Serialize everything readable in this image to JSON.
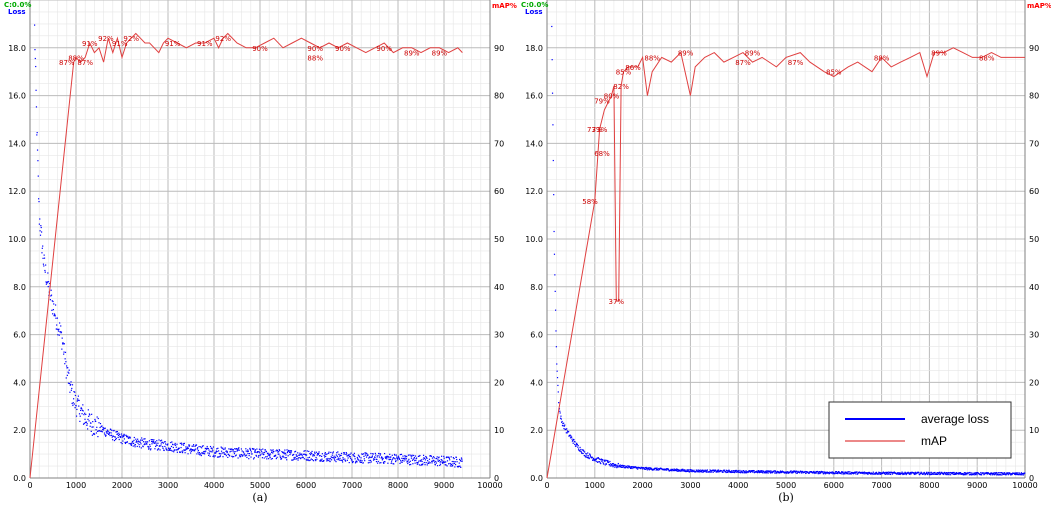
{
  "chart_data": [
    {
      "type": "line",
      "caption": "(a)",
      "left_axis_title": "Loss",
      "corner_label": "C:0.0%",
      "right_axis_title": "mAP%",
      "xlim": [
        0,
        10000
      ],
      "ylim_loss": [
        0,
        20
      ],
      "ylim_map": [
        0,
        100
      ],
      "x_ticks": [
        "0",
        "1000",
        "2000",
        "3000",
        "4000",
        "5000",
        "6000",
        "7000",
        "8000",
        "9000",
        "10000"
      ],
      "y_ticks_loss": [
        "0.0",
        "2.0",
        "4.0",
        "6.0",
        "8.0",
        "10.0",
        "12.0",
        "14.0",
        "16.0",
        "18.0"
      ],
      "y_ticks_map": [
        "0",
        "10",
        "20",
        "30",
        "40",
        "50",
        "60",
        "70",
        "80",
        "90"
      ],
      "loss_max_iter": 9400,
      "loss_curve": [
        [
          100,
          18.8
        ],
        [
          150,
          14.5
        ],
        [
          200,
          11.0
        ],
        [
          250,
          10.0
        ],
        [
          300,
          9.0
        ],
        [
          400,
          8.0
        ],
        [
          500,
          7.2
        ],
        [
          600,
          6.5
        ],
        [
          700,
          5.8
        ],
        [
          800,
          4.5
        ],
        [
          900,
          3.6
        ],
        [
          1000,
          3.1
        ],
        [
          1100,
          2.8
        ],
        [
          1200,
          2.5
        ],
        [
          1400,
          2.2
        ],
        [
          1600,
          2.0
        ],
        [
          1800,
          1.8
        ],
        [
          2000,
          1.65
        ],
        [
          2300,
          1.5
        ],
        [
          2600,
          1.4
        ],
        [
          3000,
          1.35
        ],
        [
          3500,
          1.2
        ],
        [
          4000,
          1.1
        ],
        [
          5000,
          1.0
        ],
        [
          6000,
          0.95
        ],
        [
          7000,
          0.85
        ],
        [
          8000,
          0.8
        ],
        [
          9000,
          0.7
        ],
        [
          9400,
          0.65
        ]
      ],
      "loss_noise": 0.22,
      "map_series": [
        [
          0,
          0
        ],
        [
          950,
          87
        ],
        [
          1000,
          88
        ],
        [
          1100,
          87
        ],
        [
          1200,
          88
        ],
        [
          1300,
          91
        ],
        [
          1400,
          89
        ],
        [
          1500,
          90
        ],
        [
          1600,
          87
        ],
        [
          1700,
          92
        ],
        [
          1800,
          89
        ],
        [
          1900,
          92
        ],
        [
          2000,
          88
        ],
        [
          2100,
          91
        ],
        [
          2200,
          92
        ],
        [
          2300,
          93
        ],
        [
          2400,
          92
        ],
        [
          2500,
          91
        ],
        [
          2600,
          91
        ],
        [
          2700,
          90
        ],
        [
          2800,
          89
        ],
        [
          2900,
          91
        ],
        [
          3000,
          92
        ],
        [
          3200,
          91
        ],
        [
          3400,
          90
        ],
        [
          3600,
          91
        ],
        [
          3800,
          91
        ],
        [
          4000,
          92
        ],
        [
          4100,
          90
        ],
        [
          4200,
          92
        ],
        [
          4300,
          93
        ],
        [
          4500,
          91
        ],
        [
          4700,
          90
        ],
        [
          4900,
          90
        ],
        [
          5100,
          91
        ],
        [
          5300,
          92
        ],
        [
          5500,
          90
        ],
        [
          5700,
          91
        ],
        [
          5900,
          92
        ],
        [
          6100,
          91
        ],
        [
          6300,
          90
        ],
        [
          6500,
          91
        ],
        [
          6700,
          90
        ],
        [
          6900,
          91
        ],
        [
          7100,
          90
        ],
        [
          7300,
          89
        ],
        [
          7500,
          90
        ],
        [
          7700,
          91
        ],
        [
          7900,
          89
        ],
        [
          8100,
          90
        ],
        [
          8300,
          90
        ],
        [
          8500,
          89
        ],
        [
          8700,
          90
        ],
        [
          8900,
          90
        ],
        [
          9100,
          89
        ],
        [
          9300,
          90
        ],
        [
          9400,
          89
        ]
      ],
      "map_labels": [
        {
          "x": 800,
          "y": 87,
          "text": "87%"
        },
        {
          "x": 1000,
          "y": 88,
          "text": "88%"
        },
        {
          "x": 1200,
          "y": 87,
          "text": "87%"
        },
        {
          "x": 1300,
          "y": 91,
          "text": "91%"
        },
        {
          "x": 1650,
          "y": 92,
          "text": "92%"
        },
        {
          "x": 1950,
          "y": 91,
          "text": "91%"
        },
        {
          "x": 2200,
          "y": 92,
          "text": "92%"
        },
        {
          "x": 3100,
          "y": 91,
          "text": "91%"
        },
        {
          "x": 3800,
          "y": 91,
          "text": "91%"
        },
        {
          "x": 4200,
          "y": 92,
          "text": "92%"
        },
        {
          "x": 5000,
          "y": 90,
          "text": "90%"
        },
        {
          "x": 6200,
          "y": 90,
          "text": "90%"
        },
        {
          "x": 6200,
          "y": 88,
          "text": "88%"
        },
        {
          "x": 6800,
          "y": 90,
          "text": "90%"
        },
        {
          "x": 7700,
          "y": 90,
          "text": "90%"
        },
        {
          "x": 8300,
          "y": 89,
          "text": "89%"
        },
        {
          "x": 8900,
          "y": 89,
          "text": "89%"
        }
      ]
    },
    {
      "type": "line",
      "caption": "(b)",
      "left_axis_title": "Loss",
      "corner_label": "C:0.0%",
      "right_axis_title": "mAP%",
      "xlim": [
        0,
        10000
      ],
      "ylim_loss": [
        0,
        20
      ],
      "ylim_map": [
        0,
        100
      ],
      "x_ticks": [
        "0",
        "1000",
        "2000",
        "3000",
        "4000",
        "5000",
        "6000",
        "7000",
        "8000",
        "9000",
        "10000"
      ],
      "y_ticks_loss": [
        "0.0",
        "2.0",
        "4.0",
        "6.0",
        "8.0",
        "10.0",
        "12.0",
        "14.0",
        "16.0",
        "18.0"
      ],
      "y_ticks_map": [
        "0",
        "10",
        "20",
        "30",
        "40",
        "50",
        "60",
        "70",
        "80",
        "90"
      ],
      "loss_max_iter": 10000,
      "loss_curve": [
        [
          100,
          19.0
        ],
        [
          150,
          10.0
        ],
        [
          200,
          5.0
        ],
        [
          250,
          3.0
        ],
        [
          300,
          2.4
        ],
        [
          400,
          2.0
        ],
        [
          500,
          1.7
        ],
        [
          600,
          1.4
        ],
        [
          700,
          1.2
        ],
        [
          800,
          1.0
        ],
        [
          900,
          0.9
        ],
        [
          1000,
          0.8
        ],
        [
          1200,
          0.65
        ],
        [
          1500,
          0.5
        ],
        [
          2000,
          0.4
        ],
        [
          2500,
          0.35
        ],
        [
          3000,
          0.3
        ],
        [
          4000,
          0.27
        ],
        [
          5000,
          0.25
        ],
        [
          6000,
          0.22
        ],
        [
          7000,
          0.2
        ],
        [
          8000,
          0.19
        ],
        [
          9000,
          0.18
        ],
        [
          10000,
          0.17
        ]
      ],
      "loss_noise": 0.05,
      "map_series": [
        [
          0,
          0
        ],
        [
          1000,
          58
        ],
        [
          1100,
          73
        ],
        [
          1200,
          77
        ],
        [
          1300,
          79
        ],
        [
          1350,
          80
        ],
        [
          1400,
          82
        ],
        [
          1450,
          37
        ],
        [
          1500,
          37
        ],
        [
          1550,
          82
        ],
        [
          1600,
          85
        ],
        [
          1700,
          86
        ],
        [
          1800,
          86
        ],
        [
          1900,
          86
        ],
        [
          2000,
          88
        ],
        [
          2100,
          80
        ],
        [
          2200,
          85
        ],
        [
          2400,
          88
        ],
        [
          2600,
          87
        ],
        [
          2800,
          89
        ],
        [
          3000,
          80
        ],
        [
          3100,
          86
        ],
        [
          3300,
          88
        ],
        [
          3500,
          89
        ],
        [
          3700,
          87
        ],
        [
          3900,
          88
        ],
        [
          4100,
          89
        ],
        [
          4300,
          87
        ],
        [
          4500,
          88
        ],
        [
          4800,
          86
        ],
        [
          5000,
          88
        ],
        [
          5300,
          89
        ],
        [
          5500,
          87
        ],
        [
          5800,
          85
        ],
        [
          6000,
          84
        ],
        [
          6300,
          86
        ],
        [
          6500,
          87
        ],
        [
          6800,
          85
        ],
        [
          7000,
          88
        ],
        [
          7200,
          86
        ],
        [
          7400,
          87
        ],
        [
          7600,
          88
        ],
        [
          7800,
          89
        ],
        [
          7950,
          84
        ],
        [
          8100,
          89
        ],
        [
          8300,
          89
        ],
        [
          8500,
          90
        ],
        [
          8700,
          89
        ],
        [
          8900,
          88
        ],
        [
          9100,
          88
        ],
        [
          9300,
          89
        ],
        [
          9500,
          88
        ],
        [
          9700,
          88
        ],
        [
          9900,
          88
        ],
        [
          10000,
          88
        ]
      ],
      "map_labels": [
        {
          "x": 900,
          "y": 58,
          "text": "58%"
        },
        {
          "x": 1000,
          "y": 73,
          "text": "73%"
        },
        {
          "x": 1100,
          "y": 73,
          "text": "73%"
        },
        {
          "x": 1150,
          "y": 68,
          "text": "68%"
        },
        {
          "x": 1150,
          "y": 79,
          "text": "79%"
        },
        {
          "x": 1350,
          "y": 80,
          "text": "80%"
        },
        {
          "x": 1550,
          "y": 82,
          "text": "82%"
        },
        {
          "x": 1600,
          "y": 85,
          "text": "85%"
        },
        {
          "x": 1800,
          "y": 86,
          "text": "86%"
        },
        {
          "x": 1450,
          "y": 37,
          "text": "37%"
        },
        {
          "x": 2200,
          "y": 88,
          "text": "88%"
        },
        {
          "x": 2900,
          "y": 89,
          "text": "89%"
        },
        {
          "x": 4100,
          "y": 87,
          "text": "87%"
        },
        {
          "x": 4300,
          "y": 89,
          "text": "89%"
        },
        {
          "x": 5200,
          "y": 87,
          "text": "87%"
        },
        {
          "x": 6000,
          "y": 85,
          "text": "85%"
        },
        {
          "x": 7000,
          "y": 88,
          "text": "88%"
        },
        {
          "x": 8200,
          "y": 89,
          "text": "89%"
        },
        {
          "x": 9200,
          "y": 88,
          "text": "88%"
        }
      ],
      "legend": [
        {
          "label": "average loss",
          "color": "#0000ff"
        },
        {
          "label": "mAP",
          "color": "#e04040"
        }
      ]
    }
  ],
  "colors": {
    "loss": "#0000ff",
    "map": "#e04040",
    "grid": "#c8c8c8",
    "corner": "#00aa00"
  }
}
